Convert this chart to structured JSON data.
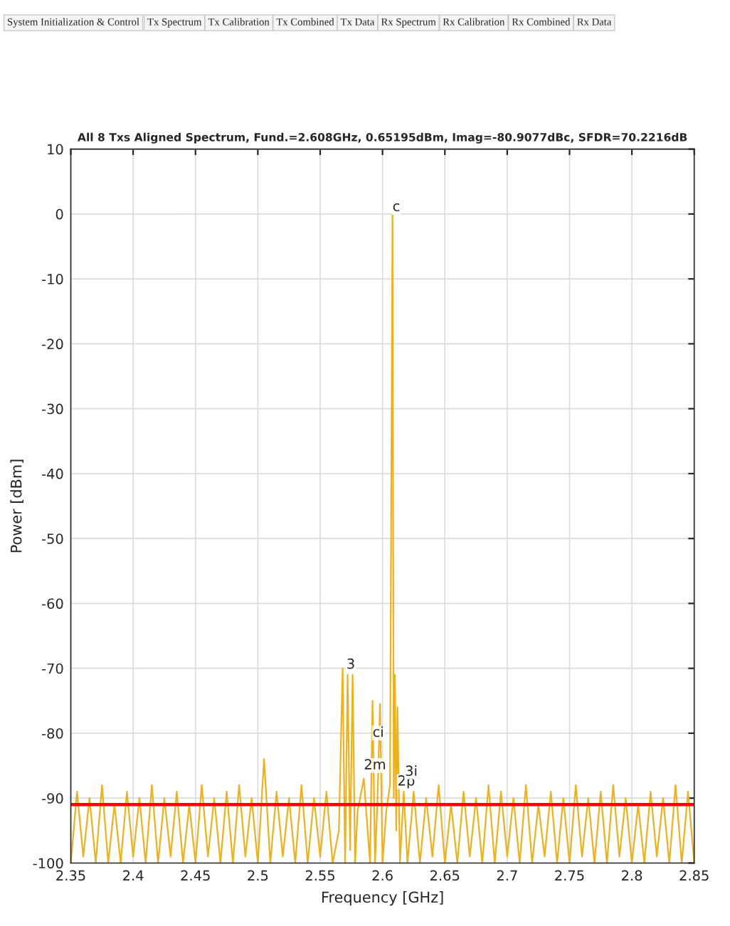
{
  "chart_data": {
    "type": "line",
    "title": "All 8 Txs Aligned Spectrum, Fund.=2.608GHz, 0.65195dBm, Imag=-80.9077dBc, SFDR=70.2216dB",
    "xlabel": "Frequency [GHz]",
    "ylabel": "Power [dBm]",
    "series": [
      {
        "color": "#edb120",
        "x": [
          2.35,
          2.355,
          2.36,
          2.365,
          2.37,
          2.375,
          2.38,
          2.385,
          2.39,
          2.395,
          2.4,
          2.405,
          2.41,
          2.415,
          2.42,
          2.425,
          2.43,
          2.435,
          2.44,
          2.445,
          2.45,
          2.455,
          2.46,
          2.465,
          2.47,
          2.475,
          2.48,
          2.485,
          2.49,
          2.495,
          2.5,
          2.505,
          2.51,
          2.515,
          2.52,
          2.525,
          2.53,
          2.535,
          2.54,
          2.545,
          2.55,
          2.555,
          2.56,
          2.565,
          2.568,
          2.57,
          2.572,
          2.574,
          2.576,
          2.578,
          2.58,
          2.585,
          2.59,
          2.592,
          2.594,
          2.596,
          2.598,
          2.6,
          2.603,
          2.606,
          2.608,
          2.609,
          2.61,
          2.611,
          2.612,
          2.614,
          2.617,
          2.62,
          2.625,
          2.63,
          2.635,
          2.64,
          2.645,
          2.65,
          2.655,
          2.66,
          2.665,
          2.67,
          2.675,
          2.68,
          2.685,
          2.69,
          2.695,
          2.7,
          2.705,
          2.71,
          2.715,
          2.72,
          2.725,
          2.73,
          2.735,
          2.74,
          2.745,
          2.75,
          2.755,
          2.76,
          2.765,
          2.77,
          2.775,
          2.78,
          2.785,
          2.79,
          2.795,
          2.8,
          2.805,
          2.81,
          2.815,
          2.82,
          2.825,
          2.83,
          2.835,
          2.84,
          2.845,
          2.85
        ],
        "values": [
          -100,
          -89,
          -99,
          -90,
          -100,
          -88,
          -100,
          -91,
          -100,
          -89,
          -99,
          -90,
          -100,
          -88,
          -100,
          -90,
          -99,
          -89,
          -100,
          -91,
          -100,
          -88,
          -99,
          -90,
          -100,
          -89,
          -100,
          -88,
          -99,
          -90,
          -100,
          -84,
          -100,
          -89,
          -99,
          -90,
          -100,
          -88,
          -100,
          -90,
          -99,
          -89,
          -100,
          -95,
          -70,
          -100,
          -71,
          -98,
          -71,
          -100,
          -92,
          -87,
          -100,
          -75,
          -100,
          -90,
          -75.5,
          -100,
          -92,
          -88,
          0,
          -90,
          -71,
          -95,
          -76,
          -100,
          -89,
          -100,
          -89,
          -100,
          -90,
          -99,
          -88,
          -100,
          -91,
          -100,
          -89,
          -99,
          -90,
          -100,
          -88,
          -100,
          -89,
          -99,
          -90,
          -100,
          -88,
          -100,
          -91,
          -99,
          -89,
          -100,
          -90,
          -100,
          -88,
          -99,
          -90,
          -100,
          -89,
          -100,
          -88,
          -99,
          -90,
          -100,
          -91,
          -100,
          -89,
          -99,
          -90,
          -100,
          -88,
          -100,
          -89,
          -100
        ]
      }
    ],
    "xlim": [
      2.35,
      2.85
    ],
    "xticks": [
      2.35,
      2.4,
      2.45,
      2.5,
      2.55,
      2.6,
      2.65,
      2.7,
      2.75,
      2.8,
      2.85
    ],
    "ylim": [
      -100,
      10
    ],
    "yticks": [
      -100,
      -90,
      -80,
      -70,
      -60,
      -50,
      -40,
      -30,
      -20,
      -10,
      0,
      10
    ],
    "grid": true,
    "line_style": "solid",
    "ref_lines": [
      {
        "axis": "y",
        "value": -91,
        "color": "#ff0000"
      }
    ],
    "annotations": [
      "System Initialization & Control",
      "Tx Spectrum",
      "Tx Calibration",
      "Tx Combined",
      "Tx Data",
      "Rx Spectrum",
      "Rx Calibration",
      "Rx Combined",
      "Rx Data",
      {
        "text": "c",
        "x": 2.608,
        "y": 0
      },
      {
        "text": "3",
        "x": 2.571,
        "y": -70.5
      },
      {
        "text": "ci",
        "x": 2.592,
        "y": -81
      },
      {
        "text": "2m",
        "x": 2.585,
        "y": -86
      },
      {
        "text": "2p",
        "x": 2.612,
        "y": -88.5
      },
      {
        "text": "3i",
        "x": 2.618,
        "y": -87
      }
    ]
  }
}
